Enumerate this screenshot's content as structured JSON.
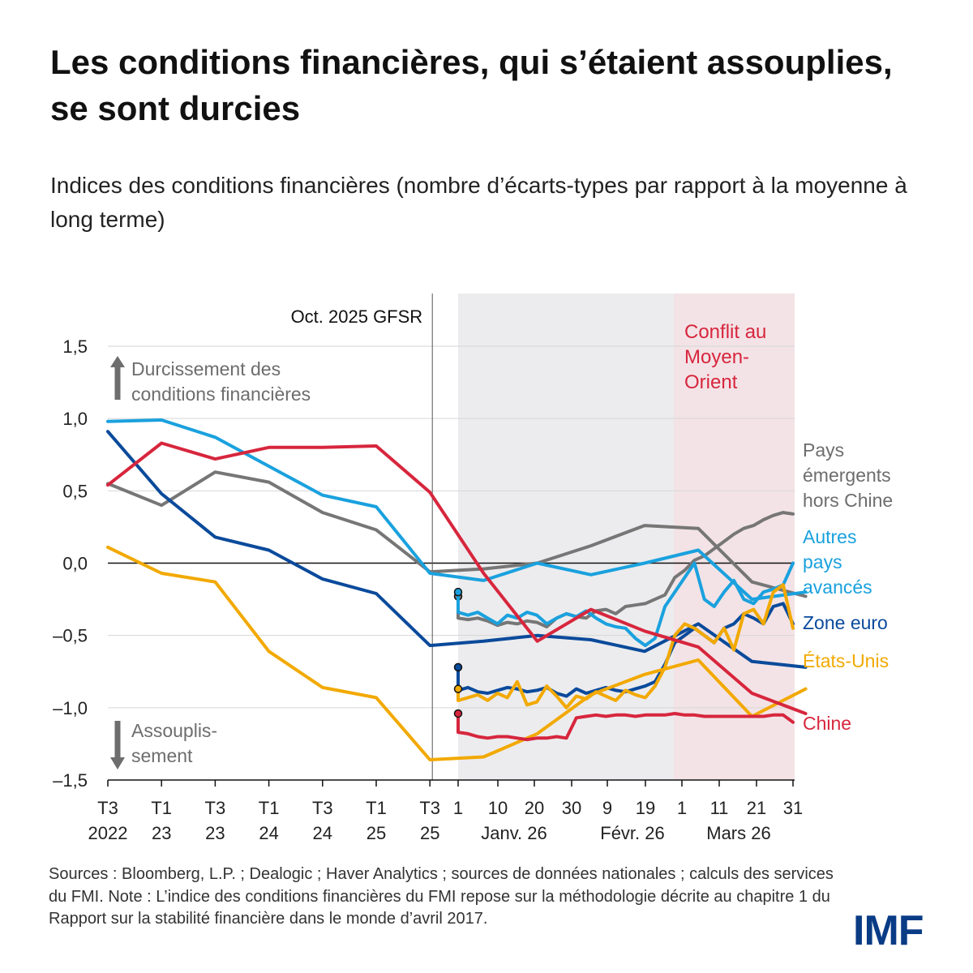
{
  "title": "Les conditions financières, qui s’étaient assouplies, se sont durcies",
  "subtitle": "Indices des conditions financières (nombre d’écarts-types par rapport à la moyenne à long terme)",
  "note": "Sources : Bloomberg, L.P. ; Dealogic ; Haver Analytics ; sources de données nationales ; calculs des services du FMI. Note : L’indice des conditions financières du FMI repose sur la méthodologie décrite au chapitre 1 du Rapport sur la stabilité financière dans le monde d’avril 2017.",
  "logo": "IMF",
  "colors": {
    "china": "#d7263d",
    "us": "#f2a900",
    "euro": "#0a4a9b",
    "adv": "#1aa1de",
    "em": "#767676",
    "shade_gray": "#ececee",
    "shade_red": "#f3e3e6"
  },
  "chart_data": {
    "type": "line",
    "ylim": [
      -1.5,
      1.5
    ],
    "y_ticks": [
      "1,5",
      "1,0",
      "0,5",
      "0,0",
      "–0,5",
      "–1,0",
      "–1,5"
    ],
    "quarterly_ticks": [
      {
        "top": "T3",
        "bottom": "2022"
      },
      {
        "top": "T1",
        "bottom": "23"
      },
      {
        "top": "T3",
        "bottom": "23"
      },
      {
        "top": "T1",
        "bottom": "24"
      },
      {
        "top": "T3",
        "bottom": "24"
      },
      {
        "top": "T1",
        "bottom": "25"
      },
      {
        "top": "T3",
        "bottom": "25"
      }
    ],
    "daily_ticks": [
      "1",
      "10",
      "20",
      "30",
      "9",
      "19",
      "1",
      "11",
      "21",
      "31"
    ],
    "month_labels": [
      "Janv. 26",
      "Févr. 26",
      "Mars 26"
    ],
    "annotations": {
      "gfsr": "Oct. 2025 GFSR",
      "conflict": [
        "Conflit au",
        "Moyen-",
        "Orient"
      ],
      "tightening": [
        "Durcissement des",
        "conditions financières"
      ],
      "easing": [
        "Assouplis-",
        "sement"
      ]
    },
    "series": [
      {
        "key": "em",
        "label": [
          "Pays",
          "émergents",
          "hors Chine"
        ],
        "quarterly": [
          0.55,
          0.4,
          0.63,
          0.56,
          0.35,
          0.23,
          -0.06,
          -0.04,
          0.0,
          0.12,
          0.26,
          0.24,
          -0.13,
          -0.23
        ],
        "daily": [
          -0.38,
          -0.39,
          -0.38,
          -0.4,
          -0.43,
          -0.41,
          -0.42,
          -0.4,
          -0.41,
          -0.44,
          -0.38,
          -0.35,
          -0.37,
          -0.38,
          -0.33,
          -0.32,
          -0.35,
          -0.3,
          -0.29,
          -0.28,
          -0.25,
          -0.22,
          -0.1,
          -0.05,
          0.02,
          0.05,
          0.1,
          0.15,
          0.2,
          0.24,
          0.26,
          0.3,
          0.33,
          0.35,
          0.34
        ]
      },
      {
        "key": "adv",
        "label": [
          "Autres",
          "pays",
          "avancés"
        ],
        "quarterly": [
          0.98,
          0.99,
          0.87,
          0.67,
          0.47,
          0.39,
          -0.07,
          -0.12,
          0.0,
          -0.08,
          0.0,
          0.09,
          -0.25,
          -0.2
        ],
        "daily": [
          -0.34,
          -0.36,
          -0.34,
          -0.38,
          -0.42,
          -0.36,
          -0.38,
          -0.34,
          -0.36,
          -0.42,
          -0.38,
          -0.35,
          -0.37,
          -0.33,
          -0.38,
          -0.42,
          -0.44,
          -0.45,
          -0.52,
          -0.57,
          -0.52,
          -0.3,
          -0.2,
          -0.1,
          0.0,
          -0.25,
          -0.3,
          -0.2,
          -0.12,
          -0.25,
          -0.28,
          -0.2,
          -0.18,
          -0.15,
          0.0
        ]
      },
      {
        "key": "euro",
        "label": [
          "Zone euro"
        ],
        "quarterly": [
          0.91,
          0.48,
          0.18,
          0.09,
          -0.11,
          -0.21,
          -0.57,
          -0.54,
          -0.5,
          -0.53,
          -0.61,
          -0.42,
          -0.68,
          -0.72
        ],
        "daily": [
          -0.88,
          -0.86,
          -0.89,
          -0.9,
          -0.88,
          -0.86,
          -0.87,
          -0.89,
          -0.88,
          -0.86,
          -0.9,
          -0.92,
          -0.87,
          -0.9,
          -0.88,
          -0.86,
          -0.88,
          -0.89,
          -0.87,
          -0.85,
          -0.82,
          -0.7,
          -0.55,
          -0.5,
          -0.45,
          -0.5,
          -0.55,
          -0.45,
          -0.42,
          -0.35,
          -0.38,
          -0.42,
          -0.3,
          -0.28,
          -0.42
        ]
      },
      {
        "key": "us",
        "label": [
          "États-Unis"
        ],
        "quarterly": [
          0.11,
          -0.07,
          -0.13,
          -0.61,
          -0.86,
          -0.93,
          -1.36,
          -1.34,
          -1.18,
          -0.91,
          -0.77,
          -0.67,
          -1.06,
          -0.87
        ],
        "daily": [
          -0.95,
          -0.93,
          -0.91,
          -0.95,
          -0.9,
          -0.93,
          -0.82,
          -0.98,
          -0.96,
          -0.85,
          -0.92,
          -1.0,
          -0.92,
          -0.94,
          -0.89,
          -0.92,
          -0.95,
          -0.88,
          -0.91,
          -0.93,
          -0.85,
          -0.72,
          -0.5,
          -0.42,
          -0.45,
          -0.5,
          -0.55,
          -0.45,
          -0.6,
          -0.35,
          -0.32,
          -0.42,
          -0.2,
          -0.15,
          -0.45
        ]
      },
      {
        "key": "china",
        "label": [
          "Chine"
        ],
        "quarterly": [
          0.54,
          0.83,
          0.72,
          0.8,
          0.8,
          0.81,
          0.49,
          -0.07,
          -0.54,
          -0.32,
          -0.47,
          -0.58,
          -0.9,
          -1.04
        ],
        "daily": [
          -1.17,
          -1.18,
          -1.2,
          -1.21,
          -1.2,
          -1.2,
          -1.21,
          -1.22,
          -1.21,
          -1.21,
          -1.2,
          -1.21,
          -1.07,
          -1.06,
          -1.05,
          -1.06,
          -1.05,
          -1.05,
          -1.06,
          -1.05,
          -1.05,
          -1.05,
          -1.04,
          -1.05,
          -1.05,
          -1.06,
          -1.06,
          -1.06,
          -1.06,
          -1.06,
          -1.06,
          -1.06,
          -1.05,
          -1.05,
          -1.1
        ]
      }
    ]
  }
}
